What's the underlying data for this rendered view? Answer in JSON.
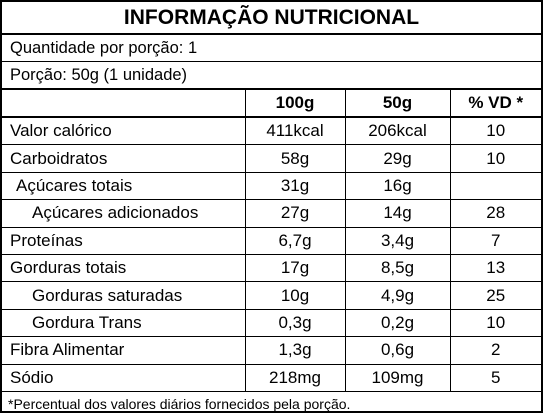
{
  "header": {
    "title": "INFORMAÇÃO NUTRICIONAL"
  },
  "serving": {
    "quantity": "Quantidade por porção: 1",
    "portion": "Porção: 50g (1 unidade)"
  },
  "table": {
    "columns": [
      "100g",
      "50g",
      "% VD *"
    ],
    "rows": [
      [
        "Valor calórico",
        "411kcal",
        "206kcal",
        "10"
      ],
      [
        "Carboidratos",
        "58g",
        "29g",
        "10"
      ],
      [
        "Açúcares totais",
        "31g",
        "16g"
      ],
      [
        "Açúcares adicionados",
        "27g",
        "14g",
        "28"
      ],
      [
        "Proteínas",
        "6,7g",
        "3,4g",
        "7"
      ],
      [
        "Gorduras totais",
        "17g",
        "8,5g",
        "13"
      ],
      [
        "Gorduras saturadas",
        "10g",
        "4,9g",
        "25"
      ],
      [
        "Gordura Trans",
        "0,3g",
        "0,2g",
        "10"
      ],
      [
        "Fibra Alimentar",
        "1,3g",
        "0,6g",
        "2"
      ],
      [
        "Sódio",
        "218mg",
        "109mg",
        "5"
      ]
    ]
  },
  "footnote": "*Percentual dos valores diários fornecidos pela porção."
}
